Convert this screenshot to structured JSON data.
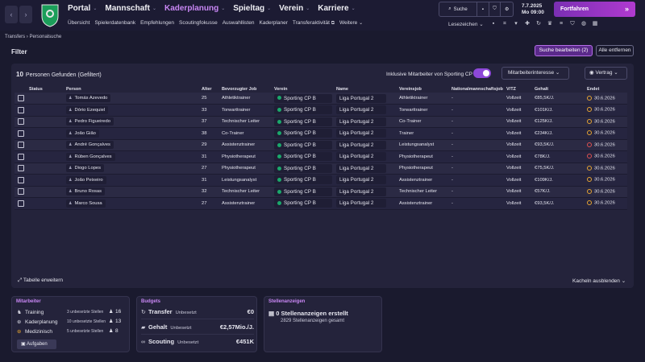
{
  "nav": {
    "main": [
      {
        "label": "Portal",
        "active": false
      },
      {
        "label": "Mannschaft",
        "active": false
      },
      {
        "label": "Kaderplanung",
        "active": true
      },
      {
        "label": "Spieltag",
        "active": false
      },
      {
        "label": "Verein",
        "active": false
      },
      {
        "label": "Karriere",
        "active": false
      }
    ],
    "sub": [
      "Übersicht",
      "Spielerdatenbank",
      "Empfehlungen",
      "Scoutingfokusse",
      "Auswahllisten",
      "Kaderplaner",
      "Transferaktivität",
      "Weitere"
    ],
    "search_label": "Suche",
    "date": "7.7.2025",
    "day_time": "Mo  09:00",
    "continue_label": "Fortfahren",
    "bookmarks_label": "Lesezeichen"
  },
  "breadcrumb": {
    "parent": "Transfers",
    "current": "Personalsuche"
  },
  "filter": {
    "title": "Filter",
    "edit_label": "Suche bearbeiten (2)",
    "remove_label": "Alle entfernen"
  },
  "results": {
    "count": "10",
    "count_label": "Personen Gefunden (Gefiltert)",
    "include_label": "Inklusive Mitarbeiter von Sporting CP",
    "interest_dropdown": "Mitarbeiterinteresse",
    "contract_dropdown": "Vertrag",
    "columns": [
      "Status",
      "Person",
      "Alter",
      "Bevorzugter Job",
      "Verein",
      "Name",
      "Vereinsjob",
      "Nationalmannschaftsjob",
      "V/TZ",
      "Gehalt",
      "Endet"
    ],
    "rows": [
      {
        "person": "Tomás Azevedo",
        "age": "25",
        "job": "Athletiktrainer",
        "club": "Sporting CP B",
        "league": "Liga Portugal 2",
        "club_job": "Athletiktrainer",
        "nat_job": "-",
        "type": "Vollzeit",
        "wage": "€85,5K/J.",
        "ends": "30.6.2026",
        "end_color": "orange"
      },
      {
        "person": "Dório Ezequiel",
        "age": "33",
        "job": "Torwarttrainer",
        "club": "Sporting CP B",
        "league": "Liga Portugal 2",
        "club_job": "Torwarttrainer",
        "nat_job": "-",
        "type": "Vollzeit",
        "wage": "€101K/J.",
        "ends": "30.6.2026",
        "end_color": "orange"
      },
      {
        "person": "Pedro Figueiredo",
        "age": "37",
        "job": "Technischer Leiter",
        "club": "Sporting CP B",
        "league": "Liga Portugal 2",
        "club_job": "Co-Trainer",
        "nat_job": "-",
        "type": "Vollzeit",
        "wage": "€125K/J.",
        "ends": "30.6.2026",
        "end_color": "orange"
      },
      {
        "person": "João Gião",
        "age": "38",
        "job": "Co-Trainer",
        "club": "Sporting CP B",
        "league": "Liga Portugal 2",
        "club_job": "Trainer",
        "nat_job": "-",
        "type": "Vollzeit",
        "wage": "€234K/J.",
        "ends": "30.6.2026",
        "end_color": "orange"
      },
      {
        "person": "André Gonçalves",
        "age": "29",
        "job": "Assistenztrainer",
        "club": "Sporting CP B",
        "league": "Liga Portugal 2",
        "club_job": "Leistungsanalyst",
        "nat_job": "-",
        "type": "Vollzeit",
        "wage": "€93,5K/J.",
        "ends": "30.6.2026",
        "end_color": "red"
      },
      {
        "person": "Rúben Gonçalves",
        "age": "31",
        "job": "Physiotherapeut",
        "club": "Sporting CP B",
        "league": "Liga Portugal 2",
        "club_job": "Physiotherapeut",
        "nat_job": "-",
        "type": "Vollzeit",
        "wage": "€78K/J.",
        "ends": "30.6.2026",
        "end_color": "red"
      },
      {
        "person": "Diogo Lopes",
        "age": "27",
        "job": "Physiotherapeut",
        "club": "Sporting CP B",
        "league": "Liga Portugal 2",
        "club_job": "Physiotherapeut",
        "nat_job": "-",
        "type": "Vollzeit",
        "wage": "€75,5K/J.",
        "ends": "30.6.2026",
        "end_color": "orange"
      },
      {
        "person": "João Peixeiro",
        "age": "31",
        "job": "Leistungsanalyst",
        "club": "Sporting CP B",
        "league": "Liga Portugal 2",
        "club_job": "Assistenztrainer",
        "nat_job": "-",
        "type": "Vollzeit",
        "wage": "€109K/J.",
        "ends": "30.6.2026",
        "end_color": "orange"
      },
      {
        "person": "Bruno Rosas",
        "age": "32",
        "job": "Technischer Leiter",
        "club": "Sporting CP B",
        "league": "Liga Portugal 2",
        "club_job": "Technischer Leiter",
        "nat_job": "-",
        "type": "Vollzeit",
        "wage": "€57K/J.",
        "ends": "30.6.2026",
        "end_color": "orange"
      },
      {
        "person": "Marco Sousa",
        "age": "27",
        "job": "Assistenztrainer",
        "club": "Sporting CP B",
        "league": "Liga Portugal 2",
        "club_job": "Assistenztrainer",
        "nat_job": "-",
        "type": "Vollzeit",
        "wage": "€93,5K/J.",
        "ends": "30.6.2026",
        "end_color": "orange"
      }
    ],
    "expand_label": "Tabelle erweitern",
    "hide_tiles_label": "Kacheln ausblenden"
  },
  "staff_tile": {
    "title": "Mitarbeiter",
    "rows": [
      {
        "label": "Training",
        "open": "3 unbesetzte Stellen",
        "count": "16"
      },
      {
        "label": "Kaderplanung",
        "open": "10 unbesetzte Stellen",
        "count": "13"
      },
      {
        "label": "Medizinisch",
        "open": "5 unbesetzte Stellen",
        "count": "8"
      }
    ],
    "tasks_label": "Aufgaben"
  },
  "budgets_tile": {
    "title": "Budgets",
    "rows": [
      {
        "label": "Transfer",
        "sub": "Unbesetzt",
        "value": "€0"
      },
      {
        "label": "Gehalt",
        "sub": "Unbesetzt",
        "value": "€2,57Mio./J."
      },
      {
        "label": "Scouting",
        "sub": "Unbesetzt",
        "value": "€451K"
      }
    ]
  },
  "ads_tile": {
    "title": "Stellenanzeigen",
    "headline": "0 Stellenanzeigen erstellt",
    "sub": "2829 Stellenanzeigen gesamt"
  },
  "colors": {
    "accent": "#b66ee8",
    "background": "#1a1a2e",
    "club_green": "#1aa86b",
    "contract_orange": "#e8a531",
    "contract_red": "#e05151"
  }
}
